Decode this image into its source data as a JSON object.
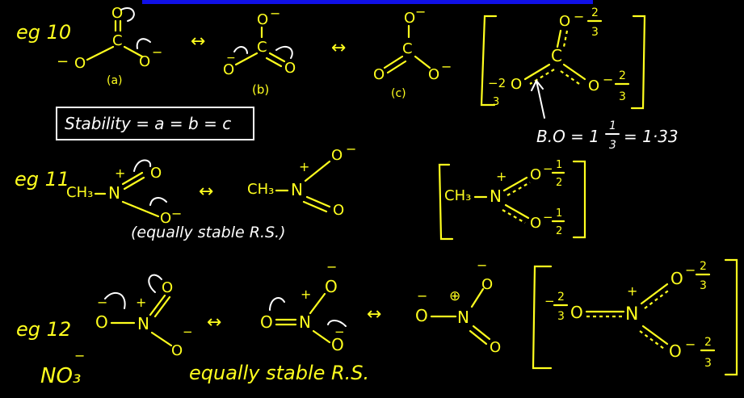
{
  "colors": {
    "background": "#000000",
    "ink": "#ffff1e",
    "white_ink": "#ffffff",
    "top_bar": "#1010e8"
  },
  "eg10": {
    "label": "eg 10",
    "carbonate_a": {
      "top_O": "O",
      "C": "C",
      "left_O": "O",
      "right_O": "O",
      "minus": "−",
      "caption": "(a)"
    },
    "carbonate_b": {
      "top_O": "O",
      "C": "C",
      "left_O": "O",
      "right_O": "O",
      "minus": "−",
      "caption": "(b)"
    },
    "carbonate_c": {
      "top_O": "O",
      "C": "C",
      "left_O": "O",
      "right_O": "O",
      "minus": "−",
      "caption": "(c)"
    },
    "arrow": "↔",
    "hybrid": {
      "top_O": "O",
      "top_charge": "−",
      "top_frac_num": "2",
      "top_frac_den": "3",
      "C": "C",
      "left_charge": "−2",
      "left_O": "O",
      "left_den": "3",
      "right_O": "O",
      "right_charge": "−",
      "right_frac_num": "2",
      "right_frac_den": "3"
    },
    "stability": "Stability = a = b = c",
    "bond_order": "B.O = 1",
    "bond_order_frac_num": "1",
    "bond_order_frac_den": "3",
    "bond_order_value": "= 1·33"
  },
  "eg11": {
    "label": "eg 11",
    "left": {
      "ch3": "CH₃",
      "N": "N",
      "plus": "+",
      "O_top": "O",
      "O_bottom": "O",
      "minus": "−"
    },
    "right": {
      "ch3": "CH₃",
      "N": "N",
      "plus": "+",
      "O_top": "O",
      "O_bottom": "O",
      "minus": "−"
    },
    "arrow": "↔",
    "note": "(equally stable R.S.)",
    "hybrid": {
      "ch3": "CH₃",
      "N": "N",
      "plus": "+",
      "O_top": "O",
      "O_bottom": "O",
      "charge": "−",
      "frac_num": "1",
      "frac_den": "2"
    }
  },
  "eg12": {
    "label": "eg 12",
    "formula": "NO₃",
    "formula_charge": "−",
    "s1": {
      "O_left": "O",
      "N": "N",
      "plus": "+",
      "O_top": "O",
      "O_bottom": "O",
      "minus": "−"
    },
    "s2": {
      "O_left": "O",
      "N": "N",
      "plus": "+",
      "O_top": "O",
      "O_bottom": "O",
      "minus": "−"
    },
    "s3": {
      "O_left": "O",
      "N": "N",
      "plus": "⊕",
      "O_top": "O",
      "O_bottom": "O",
      "minus": "−"
    },
    "arrow": "↔",
    "note": "equally stable R.S.",
    "hybrid": {
      "left_charge": "−",
      "left_num": "2",
      "left_den": "3",
      "O_left": "O",
      "N": "N",
      "plus": "+",
      "O_top": "O",
      "O_bottom": "O",
      "charge": "−",
      "frac_num": "2",
      "frac_den": "3"
    }
  }
}
